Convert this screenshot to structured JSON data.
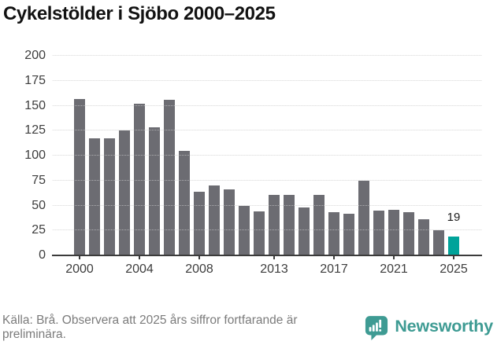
{
  "title": "Cykelstölder i Sjöbo 2000–2025",
  "chart_data": {
    "type": "bar",
    "title": "Cykelstölder i Sjöbo 2000–2025",
    "x": [
      2000,
      2001,
      2002,
      2003,
      2004,
      2005,
      2006,
      2007,
      2008,
      2009,
      2010,
      2011,
      2012,
      2013,
      2014,
      2015,
      2016,
      2017,
      2018,
      2019,
      2020,
      2021,
      2022,
      2023,
      2024,
      2025
    ],
    "values": [
      157,
      117,
      117,
      125,
      152,
      128,
      156,
      105,
      64,
      70,
      66,
      50,
      44,
      61,
      61,
      48,
      61,
      43,
      42,
      75,
      45,
      46,
      43,
      36,
      25,
      19
    ],
    "ylim": [
      0,
      200
    ],
    "yticks": [
      0,
      25,
      50,
      75,
      100,
      125,
      150,
      175,
      200
    ],
    "xticks": [
      2000,
      2004,
      2008,
      2013,
      2017,
      2021,
      2025
    ],
    "xtick_labels": [
      "2000",
      "2004",
      "2008",
      "2013",
      "2017",
      "2021",
      "2025"
    ],
    "grid": "horizontal",
    "legend": false,
    "highlight": {
      "year": 2025,
      "value": 19,
      "label": "19"
    },
    "colors": {
      "bar": "#6c6c72",
      "highlight_bar": "#00a39a",
      "axis": "#3b3b3b",
      "gridline": "#e4e4e4",
      "tick_label": "#3d3d3d",
      "value_label": "#1c1c1c"
    }
  },
  "footer": {
    "source_text": "Källa: Brå. Observera att 2025 års siffror fortfarande är preliminära.",
    "logo_text": "Newsworthy",
    "logo_color": "#3e9b93"
  }
}
